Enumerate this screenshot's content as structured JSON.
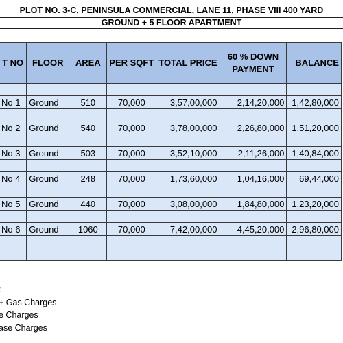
{
  "header": {
    "title": "PLOT NO. 3-C, PENINSULA COMMERCIAL, LANE 11, PHASE VIII 400 YARD",
    "subtitle": "GROUND + 5 FLOOR  APARTMENT"
  },
  "table": {
    "columns": [
      "T NO",
      "FLOOR",
      "AREA",
      "PER SQFT",
      "TOTAL PRICE",
      "60 % DOWN PAYMENT",
      "BALANCE"
    ],
    "rows": [
      {
        "unit": "No 1",
        "floor": "Ground",
        "area": "510",
        "per_sqft": "70,000",
        "total": "3,57,00,000",
        "down": "2,14,20,000",
        "balance": "1,42,80,000"
      },
      {
        "unit": "No 2",
        "floor": "Ground",
        "area": "540",
        "per_sqft": "70,000",
        "total": "3,78,00,000",
        "down": "2,26,80,000",
        "balance": "1,51,20,000"
      },
      {
        "unit": "No 3",
        "floor": "Ground",
        "area": "503",
        "per_sqft": "70,000",
        "total": "3,52,10,000",
        "down": "2,11,26,000",
        "balance": "1,40,84,000"
      },
      {
        "unit": "No 4",
        "floor": "Ground",
        "area": "248",
        "per_sqft": "70,000",
        "total": "1,73,60,000",
        "down": "1,04,16,000",
        "balance": "69,44,000"
      },
      {
        "unit": "No 5",
        "floor": "Ground",
        "area": "440",
        "per_sqft": "70,000",
        "total": "3,08,00,000",
        "down": "1,84,80,000",
        "balance": "1,23,20,000"
      },
      {
        "unit": "No 6",
        "floor": "Ground",
        "area": "1060",
        "per_sqft": "70,000",
        "total": "7,42,00,000",
        "down": "4,45,20,000",
        "balance": "2,96,80,000"
      }
    ]
  },
  "notes": [
    ":",
    "+ Gas Charges",
    "e Charges",
    "ase Charges"
  ]
}
